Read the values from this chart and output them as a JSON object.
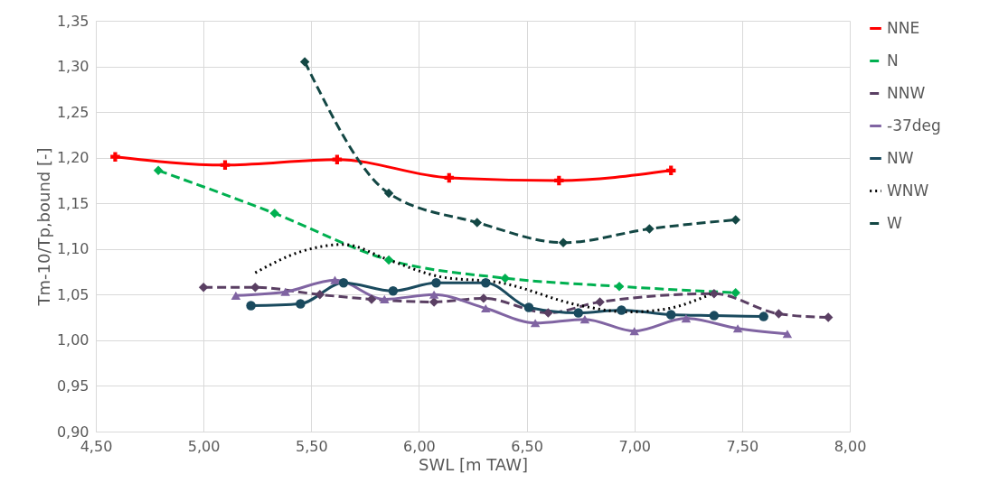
{
  "chart_data": {
    "type": "line",
    "xlabel": "SWL [m TAW]",
    "ylabel": "Tm-10/Tp,bound [-]",
    "xlim": [
      4.5,
      8.0
    ],
    "ylim": [
      0.9,
      1.35
    ],
    "xticks": [
      {
        "value": 4.5,
        "label": "4,50"
      },
      {
        "value": 5.0,
        "label": "5,00"
      },
      {
        "value": 5.5,
        "label": "5,50"
      },
      {
        "value": 6.0,
        "label": "6,00"
      },
      {
        "value": 6.5,
        "label": "6,50"
      },
      {
        "value": 7.0,
        "label": "7,00"
      },
      {
        "value": 7.5,
        "label": "7,50"
      },
      {
        "value": 8.0,
        "label": "8,00"
      }
    ],
    "yticks": [
      {
        "value": 0.9,
        "label": "0,90"
      },
      {
        "value": 0.95,
        "label": "0,95"
      },
      {
        "value": 1.0,
        "label": "1,00"
      },
      {
        "value": 1.05,
        "label": "1,05"
      },
      {
        "value": 1.1,
        "label": "1,10"
      },
      {
        "value": 1.15,
        "label": "1,15"
      },
      {
        "value": 1.2,
        "label": "1,20"
      },
      {
        "value": 1.25,
        "label": "1,25"
      },
      {
        "value": 1.3,
        "label": "1,30"
      },
      {
        "value": 1.35,
        "label": "1,35"
      }
    ],
    "grid": true,
    "legend": "right",
    "series": [
      {
        "name": "NNE",
        "color": "#ff0000",
        "marker": "cross",
        "line_style": "solid",
        "x": [
          4.59,
          5.1,
          5.62,
          6.14,
          6.65,
          7.17
        ],
        "values": [
          1.201,
          1.192,
          1.198,
          1.178,
          1.175,
          1.186
        ]
      },
      {
        "name": "N",
        "color": "#00b050",
        "marker": "diamond",
        "line_style": "dashed",
        "x": [
          4.79,
          5.33,
          5.86,
          6.4,
          6.93,
          7.47
        ],
        "values": [
          1.186,
          1.139,
          1.088,
          1.068,
          1.059,
          1.052
        ]
      },
      {
        "name": "NNW",
        "color": "#5a3f63",
        "marker": "diamond",
        "line_style": "dashed",
        "x": [
          5.0,
          5.24,
          5.54,
          5.78,
          6.07,
          6.3,
          6.6,
          6.84,
          7.37,
          7.67,
          7.9
        ],
        "values": [
          1.058,
          1.058,
          1.05,
          1.045,
          1.042,
          1.046,
          1.03,
          1.042,
          1.051,
          1.029,
          1.025
        ]
      },
      {
        "name": "-37deg",
        "color": "#8064a2",
        "marker": "triangle",
        "line_style": "solid",
        "x": [
          5.15,
          5.38,
          5.61,
          5.84,
          6.07,
          6.31,
          6.54,
          6.77,
          7.0,
          7.24,
          7.48,
          7.71
        ],
        "values": [
          1.049,
          1.053,
          1.066,
          1.045,
          1.05,
          1.035,
          1.019,
          1.023,
          1.01,
          1.024,
          1.013,
          1.007
        ]
      },
      {
        "name": "NW",
        "color": "#1a4a5e",
        "marker": "circle",
        "line_style": "solid",
        "x": [
          5.22,
          5.45,
          5.65,
          5.88,
          6.08,
          6.31,
          6.51,
          6.74,
          6.94,
          7.17,
          7.37,
          7.6
        ],
        "values": [
          1.038,
          1.04,
          1.063,
          1.054,
          1.063,
          1.063,
          1.036,
          1.03,
          1.033,
          1.028,
          1.027,
          1.026
        ]
      },
      {
        "name": "WNW",
        "color": "#000000",
        "marker": "none",
        "line_style": "dotted",
        "x": [
          5.24,
          5.45,
          5.65,
          5.86,
          6.09,
          6.38,
          6.75,
          6.97,
          7.14,
          7.36
        ],
        "values": [
          1.074,
          1.097,
          1.105,
          1.088,
          1.07,
          1.063,
          1.038,
          1.031,
          1.034,
          1.051
        ]
      },
      {
        "name": "W",
        "color": "#134744",
        "marker": "diamond",
        "line_style": "dashed",
        "x": [
          5.47,
          5.86,
          6.27,
          6.67,
          7.07,
          7.47
        ],
        "values": [
          1.305,
          1.161,
          1.129,
          1.107,
          1.122,
          1.132
        ]
      }
    ]
  }
}
